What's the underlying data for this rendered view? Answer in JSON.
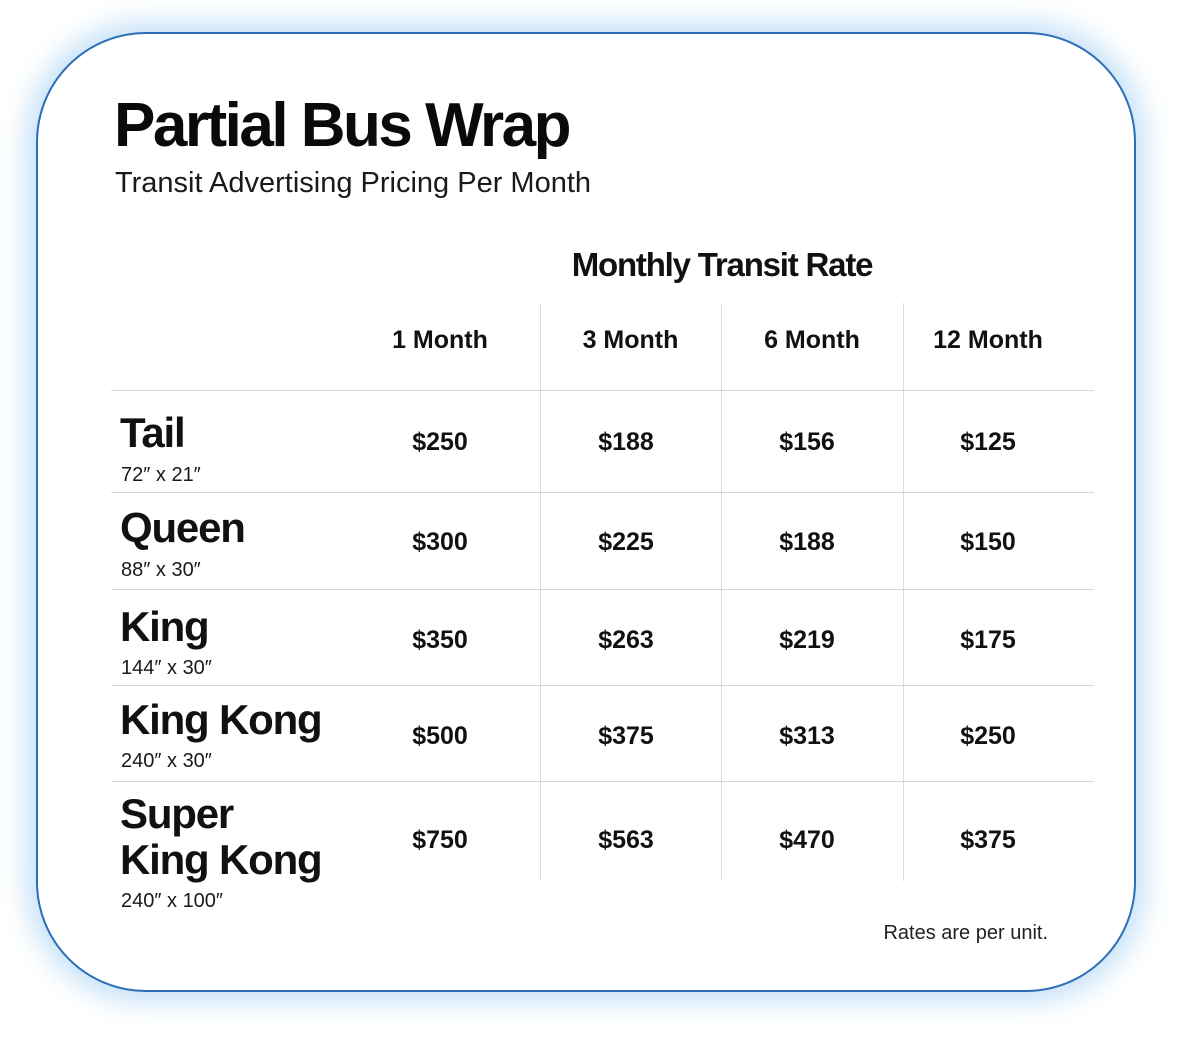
{
  "header": {
    "title": "Partial Bus Wrap",
    "subtitle": "Transit Advertising Pricing Per Month"
  },
  "table": {
    "group_header": "Monthly Transit Rate",
    "columns": [
      "1 Month",
      "3 Month",
      "6 Month",
      "12 Month"
    ],
    "rows": [
      {
        "name_lines": [
          "Tail"
        ],
        "dimensions": "72″ x 21″",
        "prices": [
          "$250",
          "$188",
          "$156",
          "$125"
        ]
      },
      {
        "name_lines": [
          "Queen"
        ],
        "dimensions": "88″ x 30″",
        "prices": [
          "$300",
          "$225",
          "$188",
          "$150"
        ]
      },
      {
        "name_lines": [
          "King"
        ],
        "dimensions": "144″ x 30″",
        "prices": [
          "$350",
          "$263",
          "$219",
          "$175"
        ]
      },
      {
        "name_lines": [
          "King Kong"
        ],
        "dimensions": "240″ x 30″",
        "prices": [
          "$500",
          "$375",
          "$313",
          "$250"
        ]
      },
      {
        "name_lines": [
          "Super",
          "King Kong"
        ],
        "dimensions": "240″ x 100″",
        "prices": [
          "$750",
          "$563",
          "$470",
          "$375"
        ]
      }
    ]
  },
  "footnote": "Rates are per unit.",
  "colors": {
    "card_border": "#2a6fb8",
    "card_glow": "#96c8f0",
    "divider": "#d8d8d8",
    "text": "#111111"
  }
}
